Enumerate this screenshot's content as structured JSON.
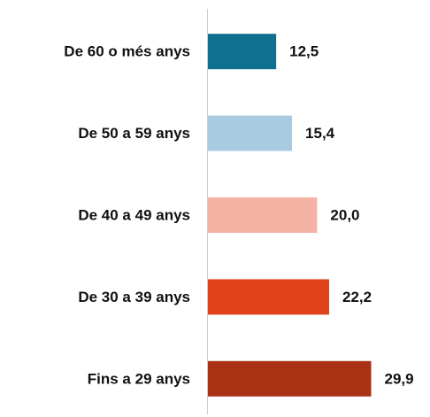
{
  "chart_data": {
    "type": "bar",
    "categories": [
      "De 60 o més anys",
      "De 50 a 59 anys",
      "De 40 a 49 anys",
      "De 30 a 39 anys",
      "Fins a 29 anys"
    ],
    "values": [
      12.5,
      15.4,
      20.0,
      22.2,
      29.9
    ],
    "value_labels": [
      "12,5",
      "15,4",
      "20,0",
      "22,2",
      "29,9"
    ],
    "colors": [
      "#10708f",
      "#a9cbe2",
      "#f4b3a4",
      "#e0431b",
      "#a93215"
    ],
    "xlim": [
      0,
      35
    ]
  }
}
